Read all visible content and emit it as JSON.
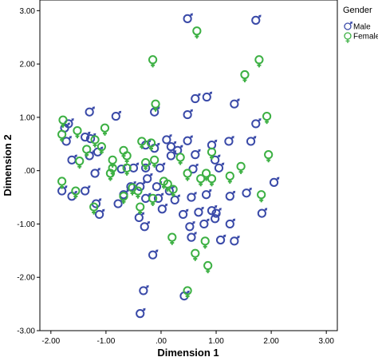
{
  "chart_data": {
    "type": "scatter",
    "xlabel": "Dimension 1",
    "ylabel": "Dimension 2",
    "xlim": [
      -2.2,
      3.2
    ],
    "ylim": [
      -3.0,
      3.2
    ],
    "xticks": [
      -2,
      -1,
      0,
      1,
      2,
      3
    ],
    "xtick_labels": [
      "-2.00",
      "-1.00",
      ".00",
      "1.00",
      "2.00",
      "3.00"
    ],
    "yticks": [
      -3,
      -2,
      -1,
      0,
      1,
      2,
      3
    ],
    "ytick_labels": [
      "-3.00",
      "-2.00",
      "-1.00",
      ".00",
      "1.00",
      "2.00",
      "3.00"
    ],
    "grid": false,
    "legend": {
      "title": "Gender",
      "placement": "top-right"
    },
    "series": [
      {
        "name": "Male",
        "color": "#3a4aa8",
        "marker": "male-symbol",
        "points": [
          [
            0.48,
            2.85
          ],
          [
            1.72,
            2.82
          ],
          [
            -1.75,
            0.8
          ],
          [
            -1.68,
            0.88
          ],
          [
            -1.3,
            1.1
          ],
          [
            -0.82,
            1.02
          ],
          [
            -0.12,
            1.1
          ],
          [
            0.48,
            1.05
          ],
          [
            0.62,
            1.35
          ],
          [
            0.83,
            1.38
          ],
          [
            1.33,
            1.25
          ],
          [
            1.72,
            0.88
          ],
          [
            -1.72,
            0.55
          ],
          [
            -1.38,
            0.63
          ],
          [
            -1.28,
            0.6
          ],
          [
            -1.62,
            0.2
          ],
          [
            -1.3,
            0.28
          ],
          [
            -1.15,
            0.35
          ],
          [
            -0.28,
            0.48
          ],
          [
            -0.12,
            0.42
          ],
          [
            0.1,
            0.58
          ],
          [
            0.18,
            0.45
          ],
          [
            0.3,
            0.38
          ],
          [
            0.48,
            0.56
          ],
          [
            0.92,
            0.48
          ],
          [
            1.23,
            0.55
          ],
          [
            1.63,
            0.55
          ],
          [
            -1.2,
            -0.05
          ],
          [
            -0.72,
            0.03
          ],
          [
            -0.5,
            0.05
          ],
          [
            -0.28,
            0.05
          ],
          [
            -0.02,
            0.05
          ],
          [
            0.18,
            0.28
          ],
          [
            0.58,
            0.03
          ],
          [
            0.62,
            0.3
          ],
          [
            0.98,
            0.2
          ],
          [
            1.05,
            0.05
          ],
          [
            -1.8,
            -0.38
          ],
          [
            -1.62,
            -0.48
          ],
          [
            -1.38,
            -0.38
          ],
          [
            -1.18,
            -0.62
          ],
          [
            -1.12,
            -0.82
          ],
          [
            -0.78,
            -0.62
          ],
          [
            -0.68,
            -0.45
          ],
          [
            -0.55,
            -0.3
          ],
          [
            -0.38,
            -0.3
          ],
          [
            -0.28,
            -0.52
          ],
          [
            -0.25,
            -0.15
          ],
          [
            -0.08,
            -0.3
          ],
          [
            -0.05,
            -0.52
          ],
          [
            0.02,
            -0.72
          ],
          [
            0.15,
            -0.38
          ],
          [
            0.25,
            -0.55
          ],
          [
            0.4,
            -0.82
          ],
          [
            0.55,
            -0.5
          ],
          [
            0.68,
            -0.78
          ],
          [
            0.82,
            -0.45
          ],
          [
            0.92,
            -0.75
          ],
          [
            1.0,
            -0.8
          ],
          [
            1.25,
            -0.48
          ],
          [
            1.55,
            -0.42
          ],
          [
            1.83,
            -0.8
          ],
          [
            2.05,
            -0.22
          ],
          [
            -0.4,
            -0.88
          ],
          [
            -0.3,
            -1.05
          ],
          [
            0.52,
            -1.05
          ],
          [
            0.78,
            -1.0
          ],
          [
            0.98,
            -0.9
          ],
          [
            1.25,
            -1.0
          ],
          [
            -0.15,
            -1.58
          ],
          [
            0.55,
            -1.25
          ],
          [
            1.08,
            -1.3
          ],
          [
            1.33,
            -1.32
          ],
          [
            -0.32,
            -2.25
          ],
          [
            0.42,
            -2.35
          ],
          [
            -0.38,
            -2.68
          ]
        ]
      },
      {
        "name": "Female",
        "color": "#3cb043",
        "marker": "female-symbol",
        "points": [
          [
            0.65,
            2.62
          ],
          [
            -0.15,
            2.08
          ],
          [
            1.78,
            2.08
          ],
          [
            1.52,
            1.8
          ],
          [
            -0.1,
            1.25
          ],
          [
            1.92,
            1.02
          ],
          [
            -1.78,
            0.95
          ],
          [
            -1.52,
            0.75
          ],
          [
            -1.8,
            0.68
          ],
          [
            -1.02,
            0.8
          ],
          [
            -1.2,
            0.58
          ],
          [
            -1.08,
            0.45
          ],
          [
            -0.88,
            0.2
          ],
          [
            -0.68,
            0.38
          ],
          [
            -0.62,
            0.28
          ],
          [
            -0.35,
            0.55
          ],
          [
            -0.18,
            0.52
          ],
          [
            -0.28,
            0.15
          ],
          [
            -0.12,
            0.2
          ],
          [
            0.35,
            0.25
          ],
          [
            0.92,
            0.35
          ],
          [
            1.95,
            0.3
          ],
          [
            -1.35,
            0.4
          ],
          [
            -1.48,
            0.18
          ],
          [
            -0.52,
            -0.32
          ],
          [
            -0.88,
            0.05
          ],
          [
            -0.62,
            0.05
          ],
          [
            -0.92,
            -0.05
          ],
          [
            -0.42,
            -0.38
          ],
          [
            -0.15,
            -0.52
          ],
          [
            0.05,
            -0.2
          ],
          [
            0.12,
            -0.25
          ],
          [
            0.22,
            -0.35
          ],
          [
            0.48,
            -0.05
          ],
          [
            0.72,
            -0.15
          ],
          [
            0.82,
            -0.05
          ],
          [
            0.92,
            -0.15
          ],
          [
            1.45,
            0.08
          ],
          [
            1.82,
            -0.45
          ],
          [
            -1.8,
            -0.2
          ],
          [
            -1.55,
            -0.38
          ],
          [
            -1.22,
            -0.68
          ],
          [
            -0.68,
            -0.48
          ],
          [
            -0.38,
            -0.68
          ],
          [
            0.2,
            -1.25
          ],
          [
            0.62,
            -1.55
          ],
          [
            0.8,
            -1.32
          ],
          [
            0.85,
            -1.78
          ],
          [
            1.25,
            -0.1
          ],
          [
            0.48,
            -2.25
          ]
        ]
      }
    ]
  }
}
